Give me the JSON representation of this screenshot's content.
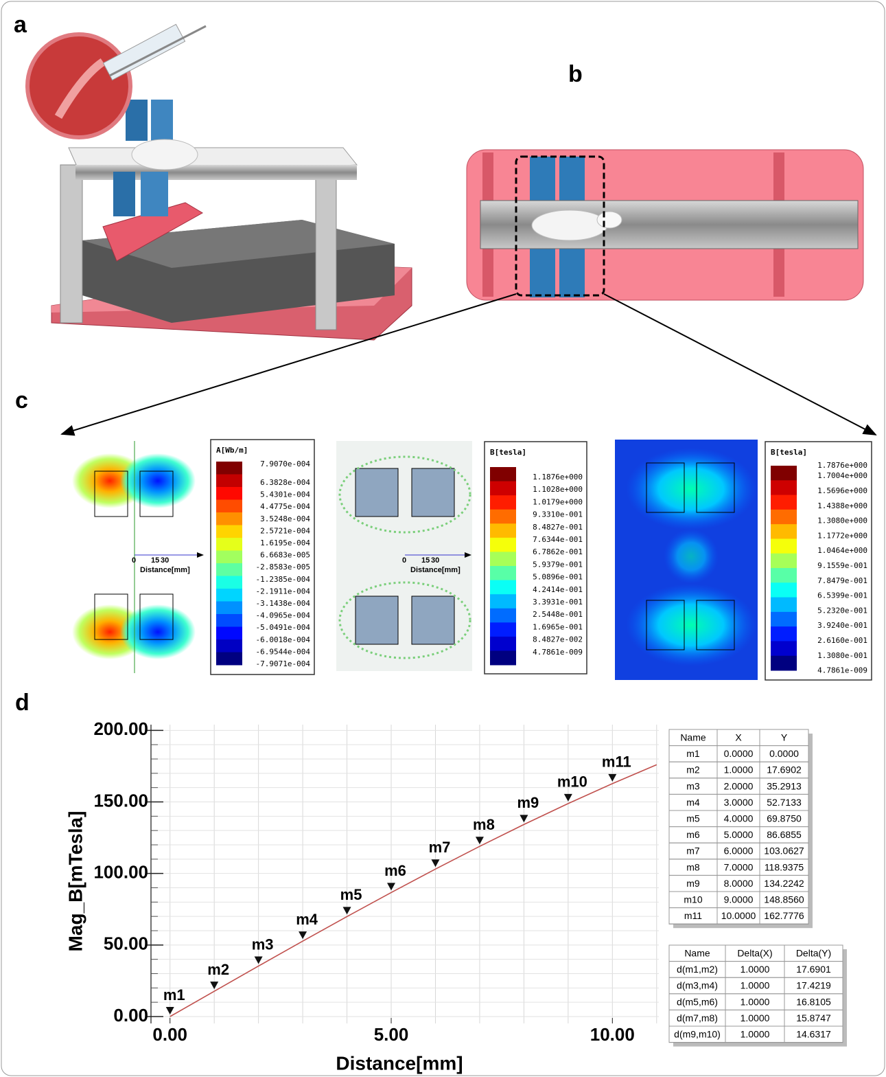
{
  "panel_labels": [
    "a",
    "b",
    "c",
    "d"
  ],
  "field_plots": {
    "axis_ticks": [
      "0",
      "15",
      "30"
    ],
    "axis_label": "Distance[mm]"
  },
  "colorbars": [
    {
      "title": "A[Wb/m]",
      "labels": [
        "7.9070e-004",
        "6.3828e-004",
        "5.4301e-004",
        "4.4775e-004",
        "3.5248e-004",
        "2.5721e-004",
        "1.6195e-004",
        "6.6683e-005",
        "-2.8583e-005",
        "-1.2385e-004",
        "-2.1911e-004",
        "-3.1438e-004",
        "-4.0965e-004",
        "-5.0491e-004",
        "-6.0018e-004",
        "-6.9544e-004",
        "-7.9071e-004"
      ]
    },
    {
      "title": "B[tesla]",
      "labels": [
        "1.1876e+000",
        "1.1028e+000",
        "1.0179e+000",
        "9.3310e-001",
        "8.4827e-001",
        "7.6344e-001",
        "6.7862e-001",
        "5.9379e-001",
        "5.0896e-001",
        "4.2414e-001",
        "3.3931e-001",
        "2.5448e-001",
        "1.6965e-001",
        "8.4827e-002",
        "4.7861e-009"
      ]
    },
    {
      "title": "B[tesla]",
      "labels": [
        "1.7876e+000",
        "1.7004e+000",
        "1.5696e+000",
        "1.4388e+000",
        "1.3080e+000",
        "1.1772e+000",
        "1.0464e+000",
        "9.1559e-001",
        "7.8479e-001",
        "6.5399e-001",
        "5.2320e-001",
        "3.9240e-001",
        "2.6160e-001",
        "1.3080e-001",
        "4.7861e-009"
      ]
    }
  ],
  "chart_data": {
    "type": "line",
    "x_label": "Distance[mm]",
    "y_label": "Mag_B[mTesla]",
    "x": [
      0,
      1,
      2,
      3,
      4,
      5,
      6,
      7,
      8,
      9,
      10,
      11
    ],
    "series": [
      {
        "color": "#c0504d",
        "values": [
          0,
          17.6902,
          35.2913,
          52.7133,
          69.875,
          86.6855,
          103.0627,
          118.9375,
          134.2242,
          148.856,
          162.7776,
          176
        ]
      }
    ],
    "xlim": [
      -0.43,
      11.05
    ],
    "ylim": [
      -4.8,
      204
    ],
    "xticks": [
      {
        "value": 0,
        "label": "0.00"
      },
      {
        "value": 5,
        "label": "5.00"
      },
      {
        "value": 10,
        "label": "10.00"
      }
    ],
    "yticks": [
      {
        "value": 0,
        "label": "0.00"
      },
      {
        "value": 50,
        "label": "50.00"
      },
      {
        "value": 100,
        "label": "100.00"
      },
      {
        "value": 150,
        "label": "150.00"
      },
      {
        "value": 200,
        "label": "200.00"
      }
    ],
    "grid": true,
    "x_gridlines": [
      0,
      1,
      2,
      3,
      4,
      5,
      6,
      7,
      8,
      9,
      10,
      11
    ],
    "y_gridlines": [
      0,
      10,
      20,
      30,
      40,
      50,
      60,
      70,
      80,
      90,
      100,
      110,
      120,
      130,
      140,
      150,
      160,
      170,
      180,
      190,
      200
    ]
  },
  "marker_table": {
    "header": [
      "Name",
      "X",
      "Y"
    ],
    "rows": [
      [
        "m1",
        "0.0000",
        "0.0000"
      ],
      [
        "m2",
        "1.0000",
        "17.6902"
      ],
      [
        "m3",
        "2.0000",
        "35.2913"
      ],
      [
        "m4",
        "3.0000",
        "52.7133"
      ],
      [
        "m5",
        "4.0000",
        "69.8750"
      ],
      [
        "m6",
        "5.0000",
        "86.6855"
      ],
      [
        "m7",
        "6.0000",
        "103.0627"
      ],
      [
        "m8",
        "7.0000",
        "118.9375"
      ],
      [
        "m9",
        "8.0000",
        "134.2242"
      ],
      [
        "m10",
        "9.0000",
        "148.8560"
      ],
      [
        "m11",
        "10.0000",
        "162.7776"
      ]
    ]
  },
  "delta_table": {
    "header": [
      "Name",
      "Delta(X)",
      "Delta(Y)"
    ],
    "rows": [
      [
        "d(m1,m2)",
        "1.0000",
        "17.6901"
      ],
      [
        "d(m3,m4)",
        "1.0000",
        "17.4219"
      ],
      [
        "d(m5,m6)",
        "1.0000",
        "16.8105"
      ],
      [
        "d(m7,m8)",
        "1.0000",
        "15.8747"
      ],
      [
        "d(m9,m10)",
        "1.0000",
        "14.6317"
      ]
    ]
  }
}
